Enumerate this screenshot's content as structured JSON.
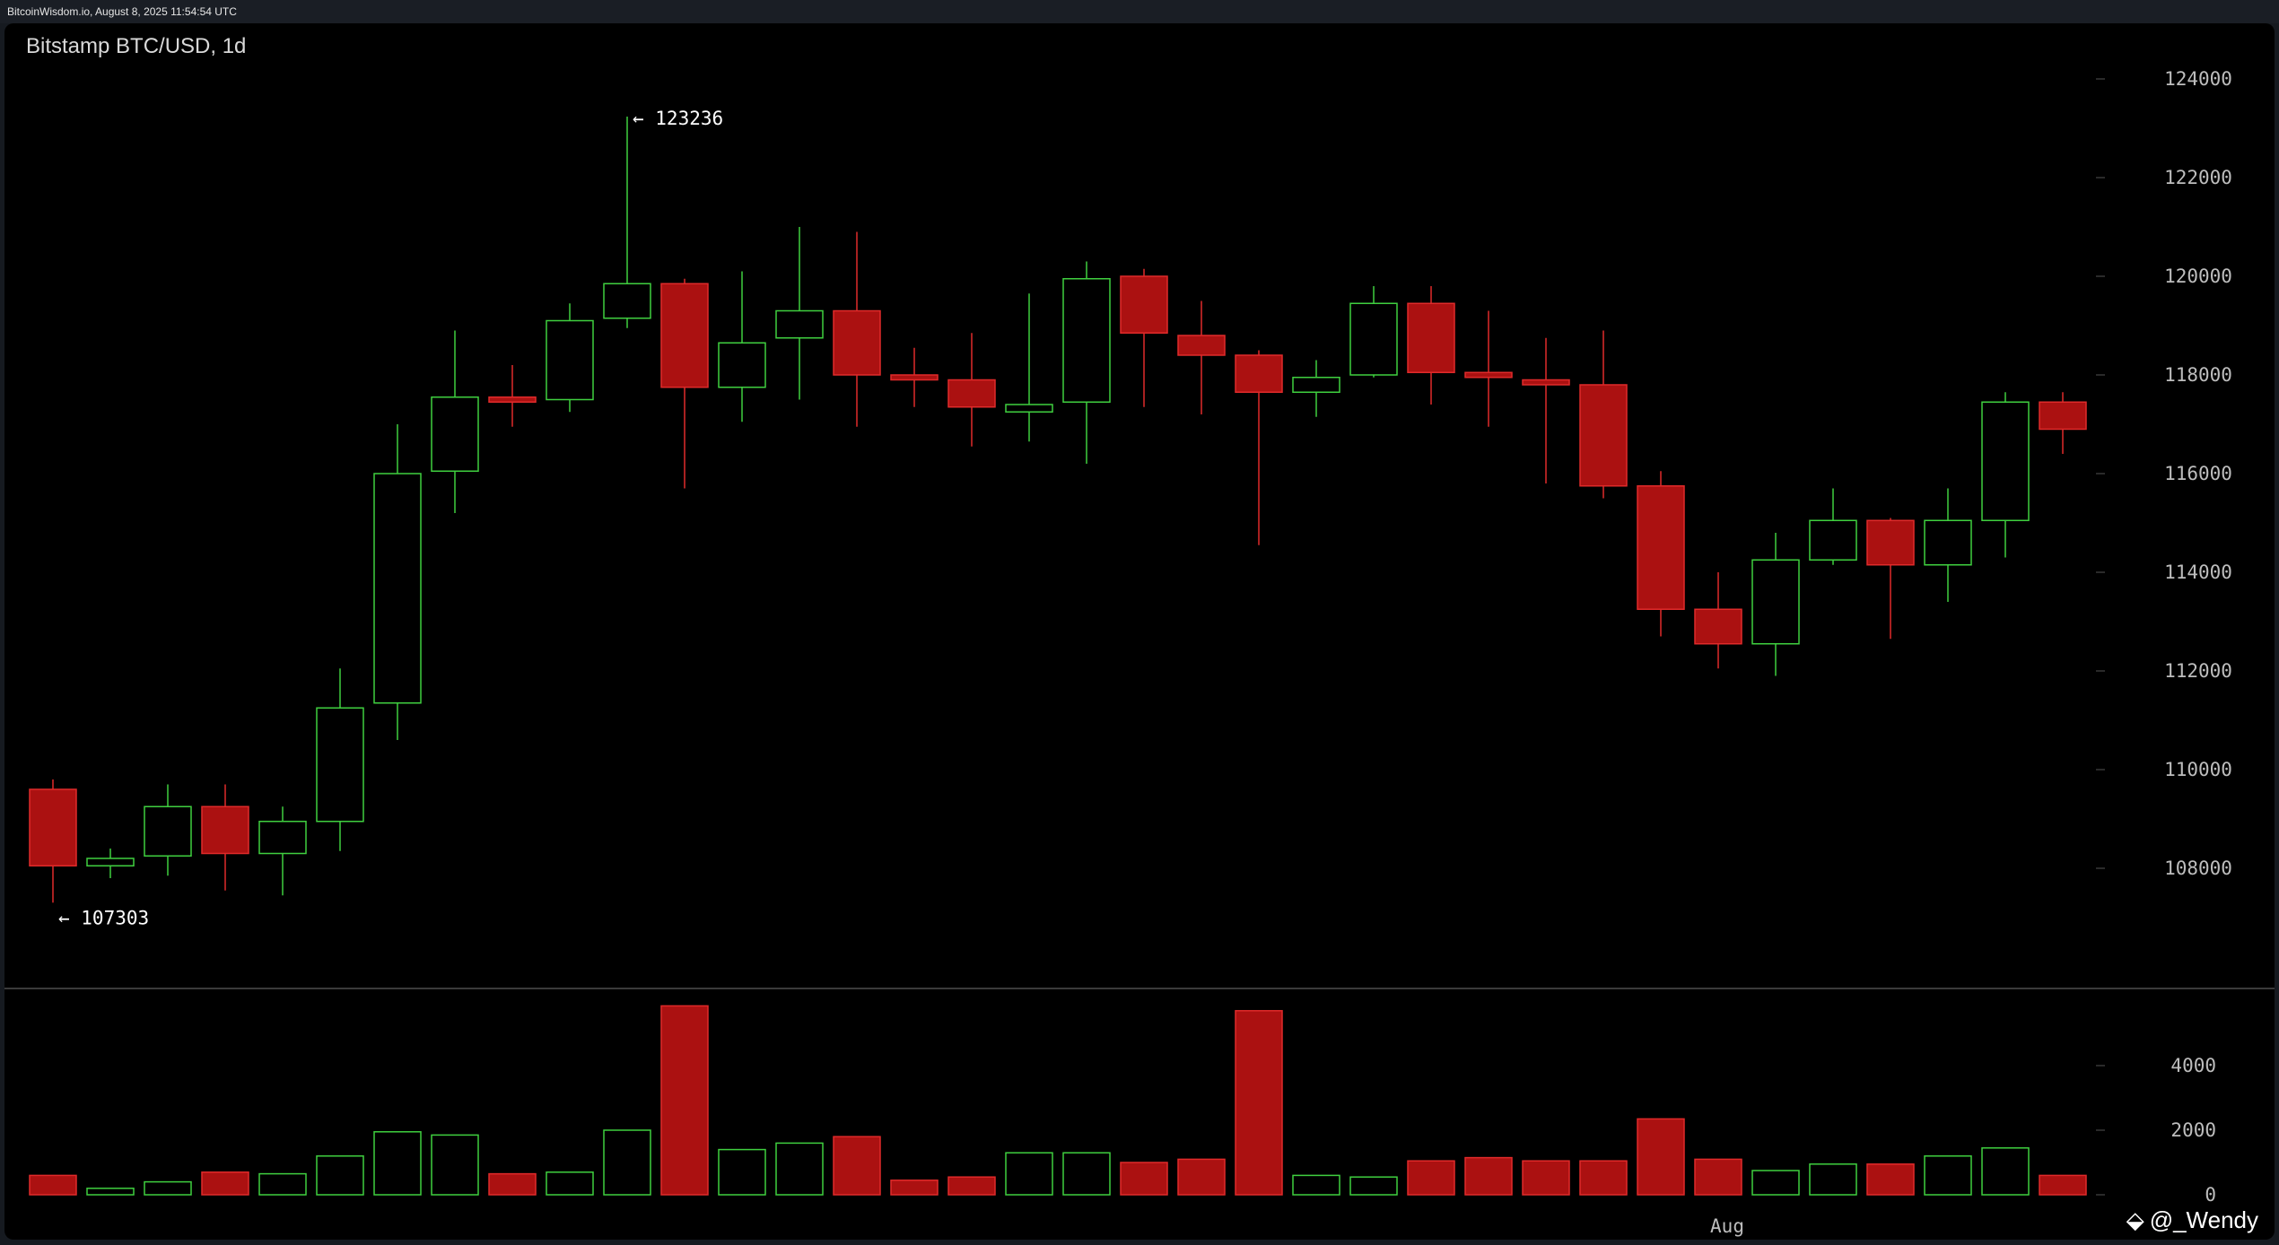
{
  "header": {
    "caption": "BitcoinWisdom.io, August 8, 2025 11:54:54 UTC"
  },
  "chart_data": {
    "type": "candlestick",
    "title": "Bitstamp BTC/USD, 1d",
    "price_axis": {
      "ticks": [
        108000,
        110000,
        112000,
        114000,
        116000,
        118000,
        120000,
        122000,
        124000
      ],
      "ylim": [
        106000,
        124600
      ]
    },
    "volume_axis": {
      "ticks": [
        0,
        2000,
        4000
      ],
      "ylim": [
        0,
        5800
      ]
    },
    "x_labels": [
      {
        "label": "Aug",
        "index": 29
      }
    ],
    "annotations": [
      {
        "label": "← 123236",
        "price": 123236,
        "index": 10
      },
      {
        "label": "← 107303",
        "price": 107303,
        "index": 0
      }
    ],
    "colors": {
      "up": "#3fcf3f",
      "down": "#ab1111",
      "down_border": "#e02a2a",
      "grid_text": "#bdbdbd"
    },
    "candles": [
      {
        "o": 109600,
        "h": 109800,
        "l": 107303,
        "c": 108050,
        "v": 600
      },
      {
        "o": 108050,
        "h": 108400,
        "l": 107800,
        "c": 108200,
        "v": 200
      },
      {
        "o": 108250,
        "h": 109700,
        "l": 107850,
        "c": 109250,
        "v": 400
      },
      {
        "o": 109250,
        "h": 109700,
        "l": 107550,
        "c": 108300,
        "v": 700
      },
      {
        "o": 108300,
        "h": 109250,
        "l": 107450,
        "c": 108950,
        "v": 650
      },
      {
        "o": 108950,
        "h": 112050,
        "l": 108350,
        "c": 111250,
        "v": 1200
      },
      {
        "o": 111350,
        "h": 117000,
        "l": 110600,
        "c": 116000,
        "v": 1950
      },
      {
        "o": 116050,
        "h": 118900,
        "l": 115200,
        "c": 117550,
        "v": 1850
      },
      {
        "o": 117550,
        "h": 118200,
        "l": 116950,
        "c": 117450,
        "v": 650
      },
      {
        "o": 117500,
        "h": 119450,
        "l": 117250,
        "c": 119100,
        "v": 700
      },
      {
        "o": 119150,
        "h": 123236,
        "l": 118950,
        "c": 119850,
        "v": 2000
      },
      {
        "o": 119850,
        "h": 119950,
        "l": 115700,
        "c": 117750,
        "v": 5850
      },
      {
        "o": 117750,
        "h": 120100,
        "l": 117050,
        "c": 118650,
        "v": 1400
      },
      {
        "o": 118750,
        "h": 121000,
        "l": 117500,
        "c": 119300,
        "v": 1600
      },
      {
        "o": 119300,
        "h": 120900,
        "l": 116950,
        "c": 118000,
        "v": 1800
      },
      {
        "o": 118000,
        "h": 118550,
        "l": 117350,
        "c": 117900,
        "v": 450
      },
      {
        "o": 117900,
        "h": 118850,
        "l": 116550,
        "c": 117350,
        "v": 550
      },
      {
        "o": 117250,
        "h": 119650,
        "l": 116650,
        "c": 117400,
        "v": 1300
      },
      {
        "o": 117450,
        "h": 120300,
        "l": 116200,
        "c": 119950,
        "v": 1300
      },
      {
        "o": 120000,
        "h": 120150,
        "l": 117350,
        "c": 118850,
        "v": 1000
      },
      {
        "o": 118800,
        "h": 119500,
        "l": 117200,
        "c": 118400,
        "v": 1100
      },
      {
        "o": 118400,
        "h": 118500,
        "l": 114550,
        "c": 117650,
        "v": 5700
      },
      {
        "o": 117650,
        "h": 118300,
        "l": 117150,
        "c": 117950,
        "v": 600
      },
      {
        "o": 118000,
        "h": 119800,
        "l": 117950,
        "c": 119450,
        "v": 550
      },
      {
        "o": 119450,
        "h": 119800,
        "l": 117400,
        "c": 118050,
        "v": 1050
      },
      {
        "o": 118050,
        "h": 119300,
        "l": 116950,
        "c": 117950,
        "v": 1150
      },
      {
        "o": 117900,
        "h": 118750,
        "l": 115800,
        "c": 117800,
        "v": 1050
      },
      {
        "o": 117800,
        "h": 118900,
        "l": 115500,
        "c": 115750,
        "v": 1050
      },
      {
        "o": 115750,
        "h": 116050,
        "l": 112700,
        "c": 113250,
        "v": 2350
      },
      {
        "o": 113250,
        "h": 114000,
        "l": 112050,
        "c": 112550,
        "v": 1100
      },
      {
        "o": 112550,
        "h": 114800,
        "l": 111900,
        "c": 114250,
        "v": 750
      },
      {
        "o": 114250,
        "h": 115700,
        "l": 114150,
        "c": 115050,
        "v": 950
      },
      {
        "o": 115050,
        "h": 115100,
        "l": 112650,
        "c": 114150,
        "v": 950
      },
      {
        "o": 114150,
        "h": 115700,
        "l": 113400,
        "c": 115050,
        "v": 1200
      },
      {
        "o": 115050,
        "h": 117650,
        "l": 114300,
        "c": 117450,
        "v": 1450
      },
      {
        "o": 117450,
        "h": 117650,
        "l": 116400,
        "c": 116900,
        "v": 600
      }
    ]
  },
  "watermark": {
    "text": "@_Wendy",
    "icon": "diamond-logo-icon",
    "sub": "cow"
  }
}
